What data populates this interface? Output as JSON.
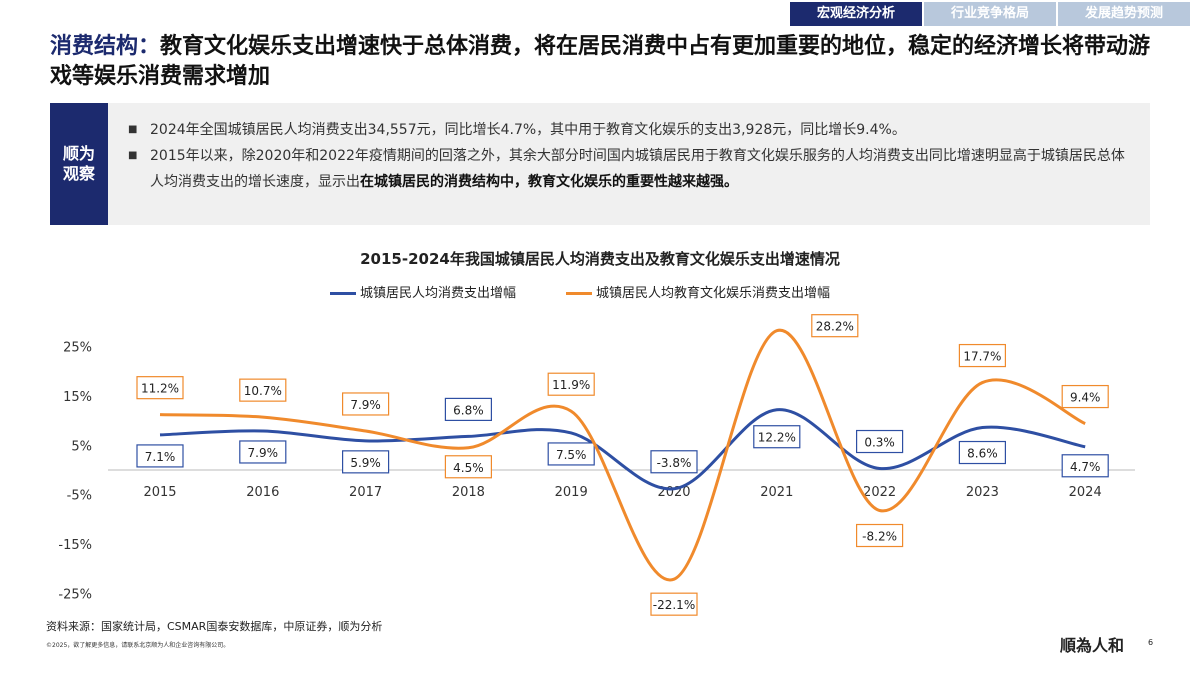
{
  "tabs": [
    {
      "label": "宏观经济分析",
      "active": true
    },
    {
      "label": "行业竞争格局",
      "active": false
    },
    {
      "label": "发展趋势预测",
      "active": false
    }
  ],
  "title": {
    "highlight": "消费结构：",
    "text": "教育文化娱乐支出增速快于总体消费，将在居民消费中占有更加重要的地位，稳定的经济增长将带动游戏等娱乐消费需求增加"
  },
  "observation": {
    "tag_line1": "顺为",
    "tag_line2": "观察",
    "bullet1": "2024年全国城镇居民人均消费支出34,557元，同比增长4.7%，其中用于教育文化娱乐的支出3,928元，同比增长9.4%。",
    "bullet2_plain": "2015年以来，除2020年和2022年疫情期间的回落之外，其余大部分时间国内城镇居民用于教育文化娱乐服务的人均消费支出同比增速明显高于城镇居民总体人均消费支出的增长速度，显示出",
    "bullet2_bold": "在城镇居民的消费结构中，教育文化娱乐的重要性越来越强。"
  },
  "chart_data": {
    "type": "line",
    "title": "2015-2024年我国城镇居民人均消费支出及教育文化娱乐支出增速情况",
    "categories": [
      "2015",
      "2016",
      "2017",
      "2018",
      "2019",
      "2020",
      "2021",
      "2022",
      "2023",
      "2024"
    ],
    "ylim": [
      -25,
      25
    ],
    "yticks": [
      "25%",
      "15%",
      "5%",
      "-5%",
      "-15%",
      "-25%"
    ],
    "legend_position": "top",
    "grid": false,
    "series": [
      {
        "name": "城镇居民人均消费支出增幅",
        "color": "#2e4fa3",
        "values": [
          7.1,
          7.9,
          5.9,
          6.8,
          7.5,
          -3.8,
          12.2,
          0.3,
          8.6,
          4.7
        ],
        "labels": [
          "7.1%",
          "7.9%",
          "5.9%",
          "6.8%",
          "7.5%",
          "-3.8%",
          "12.2%",
          "0.3%",
          "8.6%",
          "4.7%"
        ]
      },
      {
        "name": "城镇居民人均教育文化娱乐消费支出增幅",
        "color": "#f08a2c",
        "values": [
          11.2,
          10.7,
          7.9,
          4.5,
          11.9,
          -22.1,
          28.2,
          -8.2,
          17.7,
          9.4
        ],
        "labels": [
          "11.2%",
          "10.7%",
          "7.9%",
          "4.5%",
          "11.9%",
          "-22.1%",
          "28.2%",
          "-8.2%",
          "17.7%",
          "9.4%"
        ]
      }
    ]
  },
  "footer": {
    "source": "资料来源：国家统计局，CSMAR国泰安数据库，中原证券，顺为分析",
    "copyright": "©2025，欲了解更多信息，请联系北京顺为人和企业咨询有限公司。",
    "logo": "順為人和",
    "page": "6"
  }
}
